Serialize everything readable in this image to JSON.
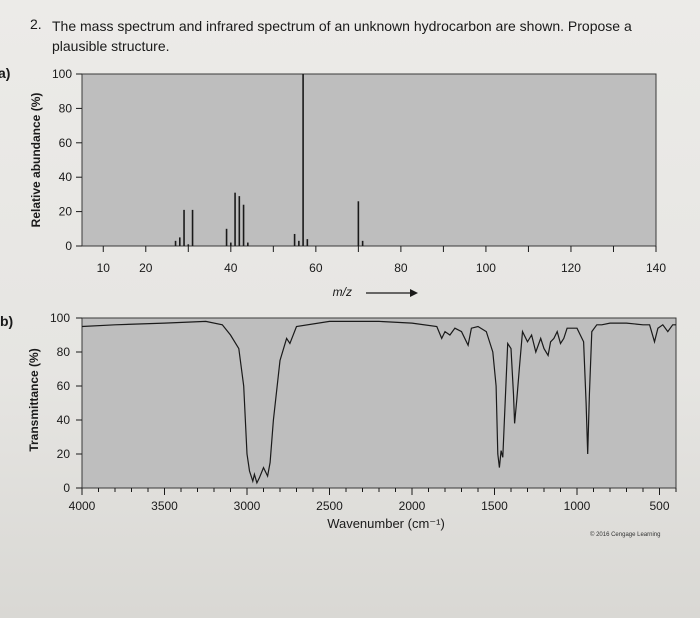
{
  "question": {
    "number": "2.",
    "text": "The mass spectrum and infrared spectrum of an unknown hydrocarbon are shown. Propose a plausible structure."
  },
  "credit": "© 2016 Cengage Learning",
  "chart_data": [
    {
      "type": "bar",
      "panel_label": "a)",
      "xlabel": "m/z",
      "ylabel": "Relative abundance (%)",
      "xlim": [
        5,
        140
      ],
      "ylim": [
        0,
        100
      ],
      "x_ticks": [
        10,
        20,
        40,
        60,
        80,
        100,
        120,
        140
      ],
      "y_ticks": [
        0,
        20,
        40,
        60,
        80,
        100
      ],
      "peaks": [
        {
          "x": 27,
          "y": 3
        },
        {
          "x": 28,
          "y": 5
        },
        {
          "x": 29,
          "y": 21
        },
        {
          "x": 30,
          "y": 1
        },
        {
          "x": 31,
          "y": 21
        },
        {
          "x": 39,
          "y": 10
        },
        {
          "x": 40,
          "y": 2
        },
        {
          "x": 41,
          "y": 31
        },
        {
          "x": 42,
          "y": 29
        },
        {
          "x": 43,
          "y": 24
        },
        {
          "x": 44,
          "y": 2
        },
        {
          "x": 55,
          "y": 7
        },
        {
          "x": 56,
          "y": 3
        },
        {
          "x": 57,
          "y": 100
        },
        {
          "x": 58,
          "y": 4
        },
        {
          "x": 70,
          "y": 26
        },
        {
          "x": 71,
          "y": 3
        }
      ]
    },
    {
      "type": "line",
      "panel_label": "b)",
      "xlabel": "Wavenumber (cm⁻¹)",
      "ylabel": "Transmittance (%)",
      "xlim": [
        4000,
        400
      ],
      "ylim": [
        0,
        100
      ],
      "x_ticks": [
        4000,
        3500,
        3000,
        2500,
        2000,
        1500,
        1000,
        500
      ],
      "y_ticks": [
        0,
        20,
        40,
        60,
        80,
        100
      ],
      "spectrum": [
        [
          4000,
          95
        ],
        [
          3800,
          96
        ],
        [
          3500,
          97
        ],
        [
          3250,
          98
        ],
        [
          3150,
          96
        ],
        [
          3100,
          90
        ],
        [
          3050,
          82
        ],
        [
          3020,
          60
        ],
        [
          3000,
          20
        ],
        [
          2985,
          10
        ],
        [
          2965,
          4
        ],
        [
          2955,
          8
        ],
        [
          2940,
          3
        ],
        [
          2925,
          6
        ],
        [
          2900,
          12
        ],
        [
          2875,
          7
        ],
        [
          2860,
          15
        ],
        [
          2840,
          40
        ],
        [
          2800,
          75
        ],
        [
          2760,
          88
        ],
        [
          2740,
          85
        ],
        [
          2700,
          95
        ],
        [
          2500,
          98
        ],
        [
          2200,
          98
        ],
        [
          2000,
          97
        ],
        [
          1850,
          95
        ],
        [
          1820,
          88
        ],
        [
          1800,
          92
        ],
        [
          1770,
          90
        ],
        [
          1740,
          94
        ],
        [
          1700,
          92
        ],
        [
          1660,
          84
        ],
        [
          1640,
          94
        ],
        [
          1600,
          95
        ],
        [
          1550,
          92
        ],
        [
          1510,
          80
        ],
        [
          1490,
          60
        ],
        [
          1480,
          20
        ],
        [
          1470,
          12
        ],
        [
          1460,
          22
        ],
        [
          1450,
          18
        ],
        [
          1440,
          40
        ],
        [
          1420,
          85
        ],
        [
          1400,
          82
        ],
        [
          1385,
          55
        ],
        [
          1378,
          38
        ],
        [
          1365,
          52
        ],
        [
          1350,
          70
        ],
        [
          1330,
          92
        ],
        [
          1300,
          86
        ],
        [
          1275,
          90
        ],
        [
          1250,
          80
        ],
        [
          1220,
          88
        ],
        [
          1200,
          82
        ],
        [
          1175,
          78
        ],
        [
          1160,
          86
        ],
        [
          1140,
          88
        ],
        [
          1120,
          92
        ],
        [
          1100,
          85
        ],
        [
          1080,
          88
        ],
        [
          1060,
          94
        ],
        [
          1000,
          94
        ],
        [
          960,
          86
        ],
        [
          945,
          50
        ],
        [
          935,
          20
        ],
        [
          925,
          55
        ],
        [
          910,
          92
        ],
        [
          880,
          96
        ],
        [
          850,
          96
        ],
        [
          800,
          97
        ],
        [
          700,
          97
        ],
        [
          600,
          96
        ],
        [
          560,
          96
        ],
        [
          530,
          86
        ],
        [
          510,
          94
        ],
        [
          480,
          96
        ],
        [
          450,
          92
        ],
        [
          420,
          96
        ],
        [
          400,
          96
        ]
      ]
    }
  ]
}
